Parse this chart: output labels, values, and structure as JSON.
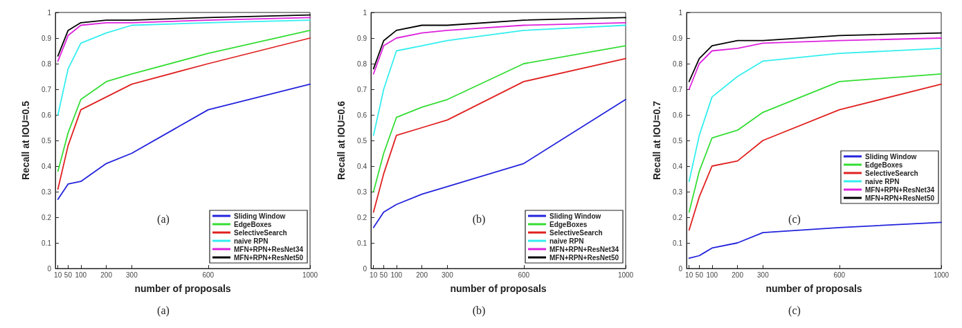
{
  "chart_data": [
    {
      "type": "line",
      "xlabel": "number of proposals",
      "ylabel": "Recall at IOU=0.5",
      "annotations": [
        "(a)",
        "(a)"
      ],
      "x": [
        10,
        50,
        100,
        200,
        300,
        600,
        1000
      ],
      "xlim": [
        0,
        1000
      ],
      "xticks": [
        10,
        50,
        100,
        200,
        300,
        600,
        1000
      ],
      "ylim": [
        0,
        1
      ],
      "yticks": [
        0,
        0.1,
        0.2,
        0.3,
        0.4,
        0.5,
        0.6,
        0.7,
        0.8,
        0.9,
        1
      ],
      "grid": false,
      "legend": "bottom right",
      "marker": "none",
      "line_style": "solid",
      "series": [
        {
          "name": "Sliding Window",
          "color": "#2222dd",
          "values": [
            0.27,
            0.33,
            0.34,
            0.41,
            0.45,
            0.62,
            0.72
          ]
        },
        {
          "name": "EdgeBoxes",
          "color": "#33dd33",
          "values": [
            0.38,
            0.53,
            0.66,
            0.73,
            0.76,
            0.84,
            0.93
          ]
        },
        {
          "name": "SelectiveSearch",
          "color": "#e02020",
          "values": [
            0.31,
            0.48,
            0.62,
            0.67,
            0.72,
            0.8,
            0.9
          ]
        },
        {
          "name": "naive RPN",
          "color": "#33eeee",
          "values": [
            0.6,
            0.78,
            0.88,
            0.92,
            0.95,
            0.96,
            0.97
          ]
        },
        {
          "name": "MFN+RPN+ResNet34",
          "color": "#dd22dd",
          "values": [
            0.81,
            0.91,
            0.95,
            0.96,
            0.96,
            0.97,
            0.98
          ]
        },
        {
          "name": "MFN+RPN+ResNet50",
          "color": "#000000",
          "values": [
            0.83,
            0.93,
            0.96,
            0.97,
            0.97,
            0.98,
            0.99
          ]
        }
      ]
    },
    {
      "type": "line",
      "xlabel": "number of proposals",
      "ylabel": "Recall at IOU=0.6",
      "annotations": [
        "(b)",
        "(b)"
      ],
      "x": [
        10,
        50,
        100,
        200,
        300,
        600,
        1000
      ],
      "xlim": [
        0,
        1000
      ],
      "xticks": [
        10,
        50,
        100,
        200,
        300,
        600,
        1000
      ],
      "ylim": [
        0,
        1
      ],
      "yticks": [
        0,
        0.1,
        0.2,
        0.3,
        0.4,
        0.5,
        0.6,
        0.7,
        0.8,
        0.9,
        1
      ],
      "grid": false,
      "legend": "bottom right",
      "marker": "none",
      "line_style": "solid",
      "series": [
        {
          "name": "Sliding Window",
          "color": "#2222dd",
          "values": [
            0.16,
            0.22,
            0.25,
            0.29,
            0.32,
            0.41,
            0.66
          ]
        },
        {
          "name": "EdgeBoxes",
          "color": "#33dd33",
          "values": [
            0.3,
            0.45,
            0.59,
            0.63,
            0.66,
            0.8,
            0.87
          ]
        },
        {
          "name": "SelectiveSearch",
          "color": "#e02020",
          "values": [
            0.22,
            0.37,
            0.52,
            0.55,
            0.58,
            0.73,
            0.82
          ]
        },
        {
          "name": "naive RPN",
          "color": "#33eeee",
          "values": [
            0.52,
            0.7,
            0.85,
            0.87,
            0.89,
            0.93,
            0.95
          ]
        },
        {
          "name": "MFN+RPN+ResNet34",
          "color": "#dd22dd",
          "values": [
            0.76,
            0.87,
            0.9,
            0.92,
            0.93,
            0.95,
            0.96
          ]
        },
        {
          "name": "MFN+RPN+ResNet50",
          "color": "#000000",
          "values": [
            0.78,
            0.89,
            0.93,
            0.95,
            0.95,
            0.97,
            0.98
          ]
        }
      ]
    },
    {
      "type": "line",
      "xlabel": "number of proposals",
      "ylabel": "Recall at IOU=0.7",
      "annotations": [
        "(c)",
        "(c)"
      ],
      "x": [
        10,
        50,
        100,
        200,
        300,
        600,
        1000
      ],
      "xlim": [
        0,
        1000
      ],
      "xticks": [
        10,
        50,
        100,
        200,
        300,
        600,
        1000
      ],
      "ylim": [
        0,
        1
      ],
      "yticks": [
        0,
        0.1,
        0.2,
        0.3,
        0.4,
        0.5,
        0.6,
        0.7,
        0.8,
        0.9,
        1
      ],
      "grid": false,
      "legend": "right",
      "marker": "none",
      "line_style": "solid",
      "series": [
        {
          "name": "Sliding Window",
          "color": "#2222dd",
          "values": [
            0.04,
            0.05,
            0.08,
            0.1,
            0.14,
            0.16,
            0.18
          ]
        },
        {
          "name": "EdgeBoxes",
          "color": "#33dd33",
          "values": [
            0.22,
            0.38,
            0.51,
            0.54,
            0.61,
            0.73,
            0.76
          ]
        },
        {
          "name": "SelectiveSearch",
          "color": "#e02020",
          "values": [
            0.15,
            0.28,
            0.4,
            0.42,
            0.5,
            0.62,
            0.72
          ]
        },
        {
          "name": "naive RPN",
          "color": "#33eeee",
          "values": [
            0.34,
            0.52,
            0.67,
            0.75,
            0.81,
            0.84,
            0.86
          ]
        },
        {
          "name": "MFN+RPN+ResNet34",
          "color": "#dd22dd",
          "values": [
            0.7,
            0.8,
            0.85,
            0.86,
            0.88,
            0.89,
            0.9
          ]
        },
        {
          "name": "MFN+RPN+ResNet50",
          "color": "#000000",
          "values": [
            0.73,
            0.82,
            0.87,
            0.89,
            0.89,
            0.91,
            0.92
          ]
        }
      ]
    }
  ]
}
